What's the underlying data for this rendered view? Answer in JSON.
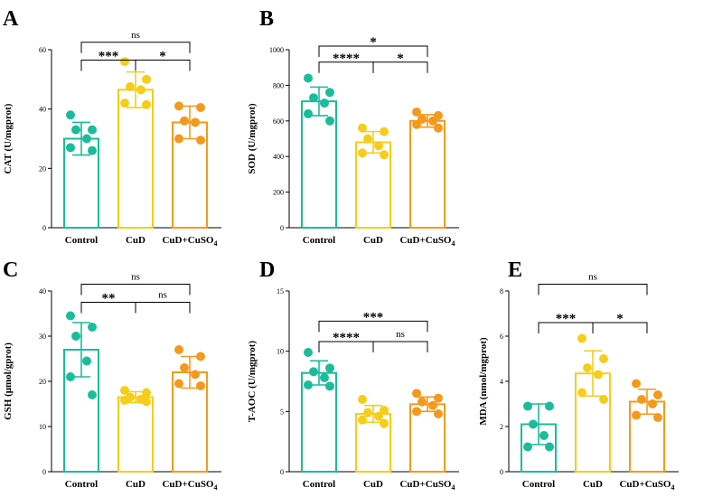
{
  "colors": {
    "control": "#1bbc9b",
    "cud": "#f5cd1b",
    "cud_cuso4": "#f39a1e",
    "axis": "#000000",
    "bracket": "#000000"
  },
  "chart_data": [
    {
      "panel": "A",
      "type": "bar",
      "ylabel": "CAT (U/mgprot)",
      "ylim": [
        0,
        60
      ],
      "yticks": [
        "0",
        "20",
        "40",
        "60"
      ],
      "categories": [
        {
          "label": "Control",
          "sub": ""
        },
        {
          "label": "CuD",
          "sub": ""
        },
        {
          "label": "CuD+CuSO",
          "sub": "4"
        }
      ],
      "means": [
        30.0,
        46.5,
        35.5
      ],
      "sd": [
        5.5,
        6.0,
        5.5
      ],
      "points": [
        [
          38.0,
          33.0,
          33.0,
          30.0,
          27.0,
          26.0
        ],
        [
          56.0,
          50.0,
          47.5,
          46.5,
          42.0,
          41.5
        ],
        [
          41.0,
          40.5,
          36.0,
          35.5,
          30.0,
          29.5
        ]
      ],
      "comparisons": [
        {
          "from": 0,
          "to": 2,
          "label": "ns",
          "y": 62.5
        },
        {
          "from": 0,
          "to": 1,
          "label": "***",
          "y": 56.5
        },
        {
          "from": 1,
          "to": 2,
          "label": "*",
          "y": 56.5
        }
      ]
    },
    {
      "panel": "B",
      "type": "bar",
      "ylabel": "SOD (U/mgprot)",
      "ylim": [
        0,
        1000
      ],
      "yticks": [
        "0",
        "200",
        "400",
        "600",
        "800",
        "1000"
      ],
      "categories": [
        {
          "label": "Control",
          "sub": ""
        },
        {
          "label": "CuD",
          "sub": ""
        },
        {
          "label": "CuD+CuSO",
          "sub": "4"
        }
      ],
      "means": [
        710,
        480,
        600
      ],
      "sd": [
        80,
        60,
        35
      ],
      "points": [
        [
          840,
          760,
          730,
          700,
          640,
          600
        ],
        [
          560,
          540,
          500,
          460,
          420,
          410
        ],
        [
          650,
          630,
          610,
          600,
          580,
          560
        ]
      ],
      "comparisons": [
        {
          "from": 0,
          "to": 2,
          "label": "*",
          "y": 1020
        },
        {
          "from": 0,
          "to": 1,
          "label": "****",
          "y": 930
        },
        {
          "from": 1,
          "to": 2,
          "label": "*",
          "y": 930
        }
      ]
    },
    {
      "panel": "C",
      "type": "bar",
      "ylabel": "GSH (μmol/gprot)",
      "ylim": [
        0,
        40
      ],
      "yticks": [
        "0",
        "10",
        "20",
        "30",
        "40"
      ],
      "categories": [
        {
          "label": "Control",
          "sub": ""
        },
        {
          "label": "CuD",
          "sub": ""
        },
        {
          "label": "CuD+CuSO",
          "sub": "4"
        }
      ],
      "means": [
        27.0,
        16.5,
        22.0
      ],
      "sd": [
        6.0,
        1.2,
        3.5
      ],
      "points": [
        [
          34.5,
          32.0,
          30.0,
          24.5,
          21.0,
          17.0
        ],
        [
          18.0,
          17.5,
          16.5,
          16.0,
          15.8,
          15.5
        ],
        [
          27.0,
          25.5,
          23.0,
          21.5,
          19.5,
          19.0
        ]
      ],
      "comparisons": [
        {
          "from": 0,
          "to": 2,
          "label": "ns",
          "y": 41.5
        },
        {
          "from": 0,
          "to": 1,
          "label": "**",
          "y": 37.5
        },
        {
          "from": 1,
          "to": 2,
          "label": "ns",
          "y": 37.5
        }
      ]
    },
    {
      "panel": "D",
      "type": "bar",
      "ylabel": "T-AOC (U/mgprot)",
      "ylim": [
        0,
        15
      ],
      "yticks": [
        "0",
        "5",
        "10",
        "15"
      ],
      "categories": [
        {
          "label": "Control",
          "sub": ""
        },
        {
          "label": "CuD",
          "sub": ""
        },
        {
          "label": "CuD+CuSO",
          "sub": "4"
        }
      ],
      "means": [
        8.2,
        4.8,
        5.6
      ],
      "sd": [
        1.0,
        0.7,
        0.6
      ],
      "points": [
        [
          9.9,
          8.6,
          8.3,
          7.8,
          7.2,
          7.1
        ],
        [
          6.0,
          5.1,
          4.9,
          4.6,
          4.3,
          4.0
        ],
        [
          6.5,
          6.1,
          5.8,
          5.5,
          5.0,
          4.8
        ]
      ],
      "comparisons": [
        {
          "from": 0,
          "to": 2,
          "label": "***",
          "y": 12.5
        },
        {
          "from": 0,
          "to": 1,
          "label": "****",
          "y": 10.8
        },
        {
          "from": 1,
          "to": 2,
          "label": "ns",
          "y": 10.8
        }
      ]
    },
    {
      "panel": "E",
      "type": "bar",
      "ylabel": "MDA (nmol/mgprot)",
      "ylim": [
        0,
        8
      ],
      "yticks": [
        "0",
        "2",
        "4",
        "6",
        "8"
      ],
      "categories": [
        {
          "label": "Control",
          "sub": ""
        },
        {
          "label": "CuD",
          "sub": ""
        },
        {
          "label": "CuD+CuSO",
          "sub": "4"
        }
      ],
      "means": [
        2.1,
        4.35,
        3.1
      ],
      "sd": [
        0.9,
        1.0,
        0.55
      ],
      "points": [
        [
          2.9,
          2.9,
          2.1,
          1.6,
          1.1,
          1.1
        ],
        [
          5.9,
          5.0,
          4.6,
          4.3,
          3.5,
          3.2
        ],
        [
          3.9,
          3.4,
          3.2,
          3.0,
          2.5,
          2.4
        ]
      ],
      "comparisons": [
        {
          "from": 0,
          "to": 2,
          "label": "ns",
          "y": 8.3
        },
        {
          "from": 0,
          "to": 1,
          "label": "***",
          "y": 6.6
        },
        {
          "from": 1,
          "to": 2,
          "label": "*",
          "y": 6.6
        }
      ]
    }
  ]
}
